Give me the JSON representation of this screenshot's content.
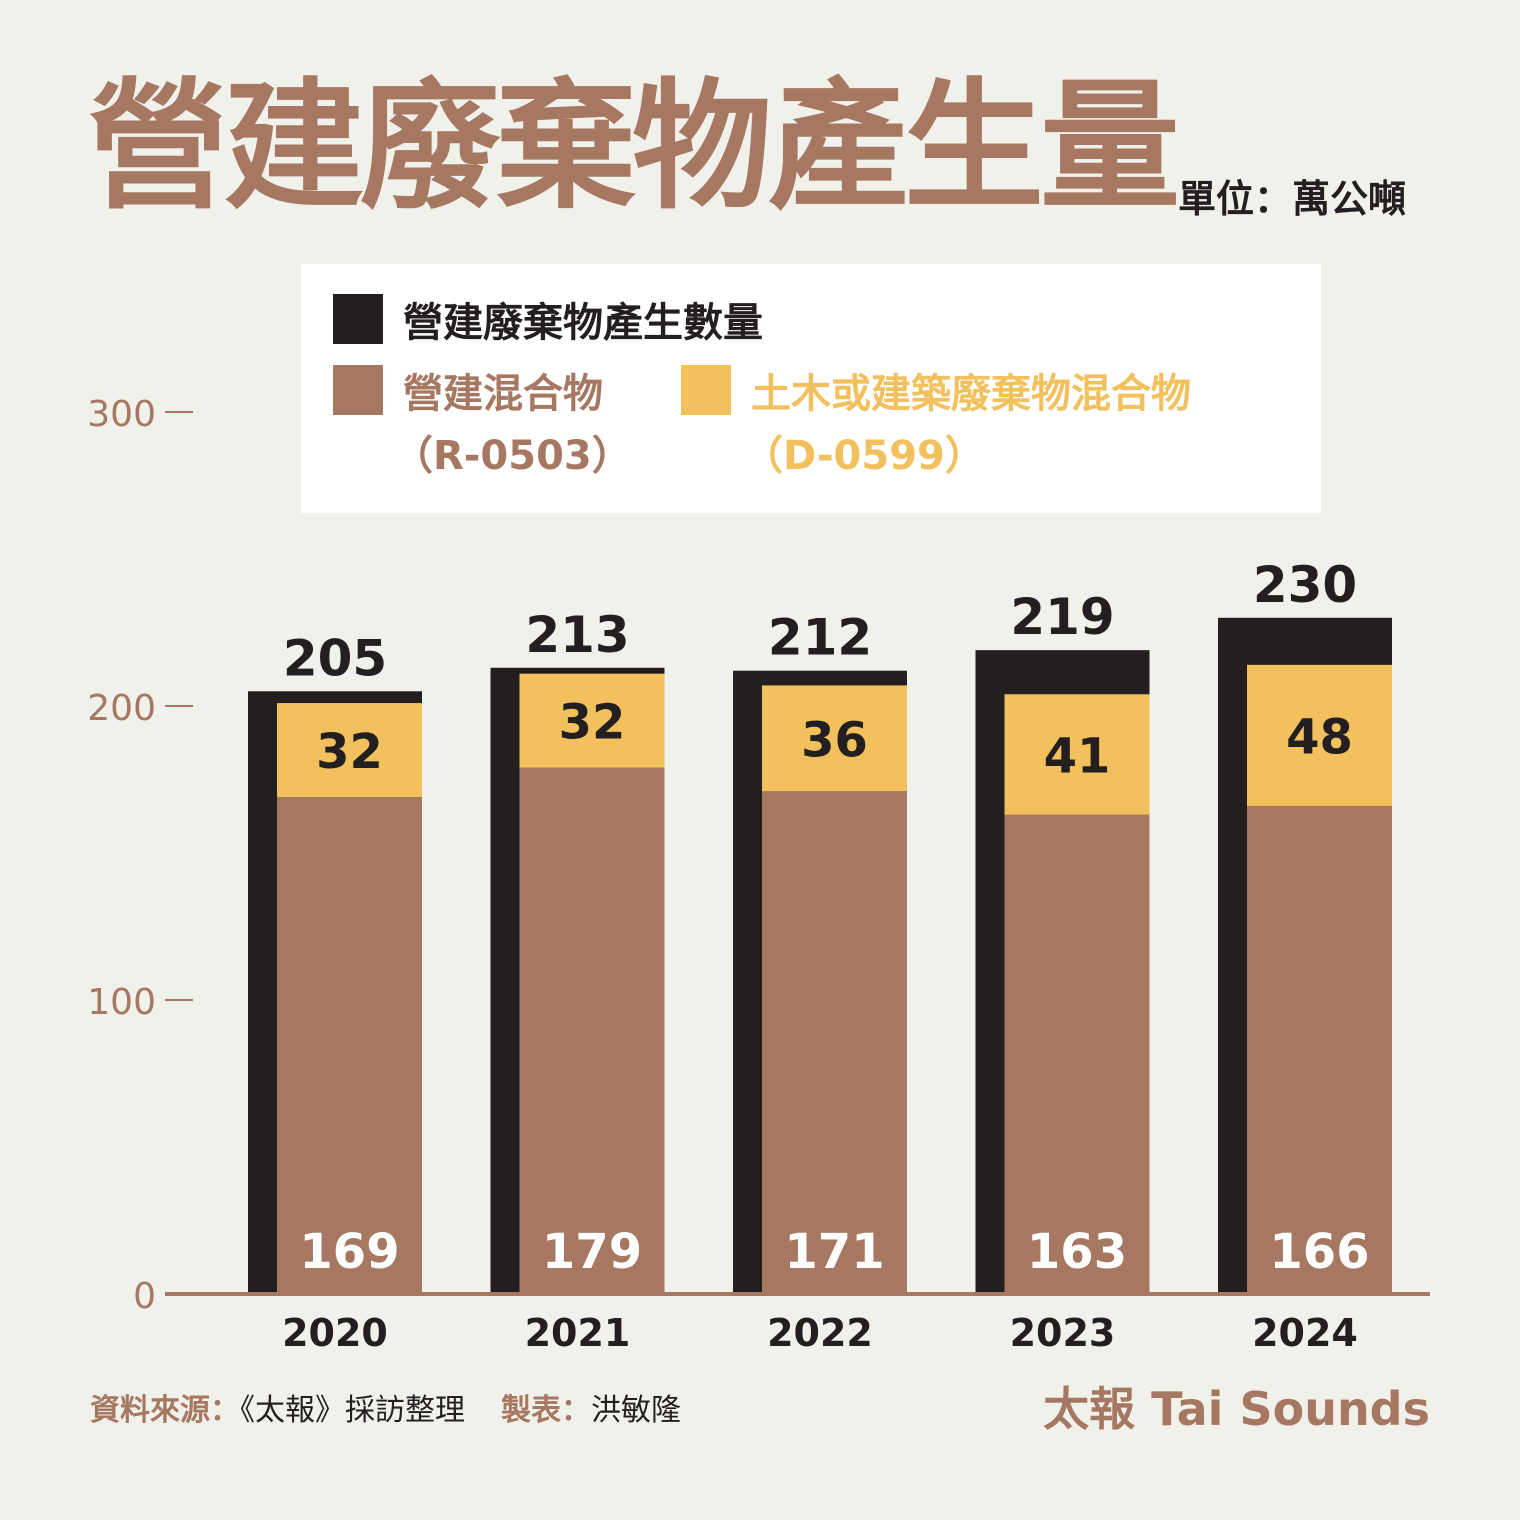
{
  "title": "營建廢棄物產生量",
  "unit": "單位：萬公噸",
  "legend": {
    "total": {
      "label": "營建廢棄物產生數量",
      "color": "#231f20"
    },
    "mixed": {
      "label": "營建混合物",
      "code": "（R-0503）",
      "color": "#a67862"
    },
    "civil": {
      "label": "土木或建築廢棄物混合物",
      "code": "（D-0599）",
      "color": "#f2c05c"
    }
  },
  "footer": {
    "source_label": "資料來源：",
    "source_value": "《太報》採訪整理",
    "maker_label": "製表：",
    "maker_value": "洪敏隆",
    "brand": "太報 Tai Sounds"
  },
  "chart_data": {
    "type": "bar",
    "categories": [
      "2020",
      "2021",
      "2022",
      "2023",
      "2024"
    ],
    "series": [
      {
        "name": "營建廢棄物產生數量",
        "values": [
          205,
          213,
          212,
          219,
          230
        ],
        "color": "#231f20"
      },
      {
        "name": "營建混合物（R-0503）",
        "values": [
          169,
          179,
          171,
          163,
          166
        ],
        "color": "#a67862"
      },
      {
        "name": "土木或建築廢棄物混合物（D-0599）",
        "values": [
          32,
          32,
          36,
          41,
          48
        ],
        "color": "#f2c05c"
      }
    ],
    "yticks": [
      "0",
      "100",
      "200",
      "300"
    ],
    "ylim": [
      0,
      300
    ],
    "grid": false,
    "legend_position": "top"
  }
}
